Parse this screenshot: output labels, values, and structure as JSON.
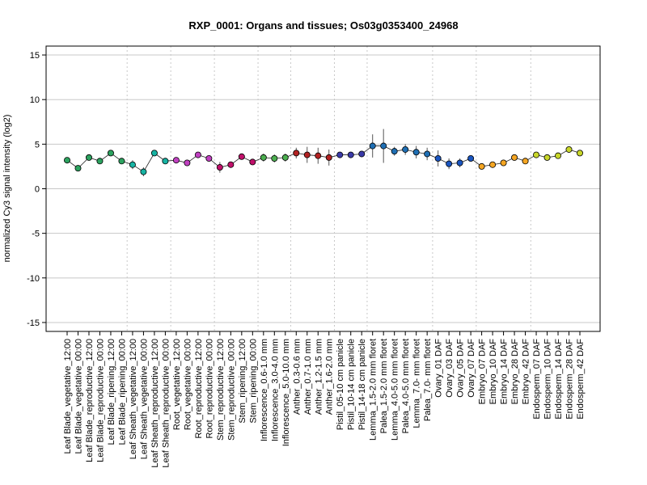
{
  "chart_data": {
    "type": "line",
    "title": "RXP_0001: Organs and tissues; Os03g0353400_24968",
    "xlabel": "",
    "ylabel": "normalized Cy3 signal intensity (log2)",
    "ylim": [
      -16,
      16
    ],
    "yticks": [
      -15,
      -10,
      -5,
      0,
      5,
      10,
      15
    ],
    "grid": "horizontal at y ticks; vertical dotted separators between tissue groups",
    "categories": [
      "Leaf Blade_vegetative_12:00",
      "Leaf Blade_vegetative_00:00",
      "Leaf Blade_reproductive_12:00",
      "Leaf Blade_reproductive_00:00",
      "Leaf Blade_ripening_12:00",
      "Leaf Blade_ripening_00:00",
      "Leaf Sheath_vegetative_12:00",
      "Leaf Sheath_vegetative_00:00",
      "Leaf Sheath_reproductive_12:00",
      "Leaf Sheath_reproductive_00:00",
      "Root_vegetative_12:00",
      "Root_vegetative_00:00",
      "Root_reproductive_12:00",
      "Root_reproductive_00:00",
      "Stem_reproductive_12:00",
      "Stem_reproductive_00:00",
      "Stem_ripening_12:00",
      "Stem_ripening_00:00",
      "Inflorescence_0.6-1.0 mm",
      "Inflorescence_3.0-4.0 mm",
      "Inflorescence_5.0-10.0 mm",
      "Anther_0.3-0.6 mm",
      "Anther_0.7-1.0 mm",
      "Anther_1.2-1.5 mm",
      "Anther_1.6-2.0 mm",
      "Pistil_05-10 cm panicle",
      "Pistil_10-14 cm panicle",
      "Pistil_14-18 cm panicle",
      "Lemma_1.5-2.0 mm floret",
      "Palea_1.5-2.0 mm floret",
      "Lemma_4.0-5.0 mm floret",
      "Palea_4.0-5.0 mm floret",
      "Lemma_7.0- mm floret",
      "Palea_7.0- mm floret",
      "Ovary_01 DAF",
      "Ovary_03 DAF",
      "Ovary_05 DAF",
      "Ovary_07 DAF",
      "Embryo_07 DAF",
      "Embryo_10 DAF",
      "Embryo_14 DAF",
      "Embryo_28 DAF",
      "Embryo_42 DAF",
      "Endosperm_07 DAF",
      "Endosperm_10 DAF",
      "Endosperm_14 DAF",
      "Endosperm_28 DAF",
      "Endosperm_42 DAF"
    ],
    "values": [
      3.2,
      2.3,
      3.5,
      3.1,
      4.0,
      3.1,
      2.7,
      1.9,
      4.0,
      3.1,
      3.2,
      2.9,
      3.8,
      3.4,
      2.4,
      2.7,
      3.6,
      3.0,
      3.5,
      3.4,
      3.5,
      4.0,
      3.8,
      3.7,
      3.5,
      3.8,
      3.8,
      3.9,
      4.8,
      4.8,
      4.2,
      4.4,
      4.1,
      3.9,
      3.4,
      2.8,
      2.9,
      3.4,
      2.5,
      2.7,
      2.9,
      3.5,
      3.1,
      3.8,
      3.5,
      3.7,
      4.4,
      4.0
    ],
    "errors": [
      0.15,
      0.2,
      0.15,
      0.1,
      0.15,
      0.2,
      0.5,
      0.5,
      0.15,
      0.15,
      0.15,
      0.15,
      0.15,
      0.2,
      0.6,
      0.3,
      0.15,
      0.15,
      0.45,
      0.45,
      0.45,
      0.6,
      0.9,
      0.9,
      0.9,
      0.2,
      0.2,
      0.3,
      1.3,
      1.9,
      0.5,
      0.6,
      0.7,
      0.7,
      0.9,
      0.6,
      0.5,
      0.3,
      0.2,
      0.2,
      0.2,
      0.3,
      0.2,
      0.3,
      0.3,
      0.3,
      0.3,
      0.2
    ],
    "colors": [
      "#2ca25f",
      "#2ca25f",
      "#2ca25f",
      "#2ca25f",
      "#2ca25f",
      "#2ca25f",
      "#17b3a3",
      "#17b3a3",
      "#17b3a3",
      "#17b3a3",
      "#c040c0",
      "#c040c0",
      "#c040c0",
      "#c040c0",
      "#c0106a",
      "#c0106a",
      "#c0106a",
      "#c0106a",
      "#4caf50",
      "#4caf50",
      "#4caf50",
      "#b22222",
      "#b22222",
      "#b22222",
      "#b22222",
      "#3a3aa8",
      "#3a3aa8",
      "#3a3aa8",
      "#1f6fb4",
      "#1f6fb4",
      "#1f6fb4",
      "#1f6fb4",
      "#1f6fb4",
      "#1f6fb4",
      "#1a55c0",
      "#1a55c0",
      "#1a55c0",
      "#1a55c0",
      "#f5a623",
      "#f5a623",
      "#f5a623",
      "#f5a623",
      "#f5a623",
      "#c8d62a",
      "#c8d62a",
      "#c8d62a",
      "#c8d62a",
      "#c8d62a"
    ],
    "group_separators_after": [
      5,
      9,
      13,
      17,
      20,
      24,
      27,
      33,
      37,
      42
    ]
  }
}
